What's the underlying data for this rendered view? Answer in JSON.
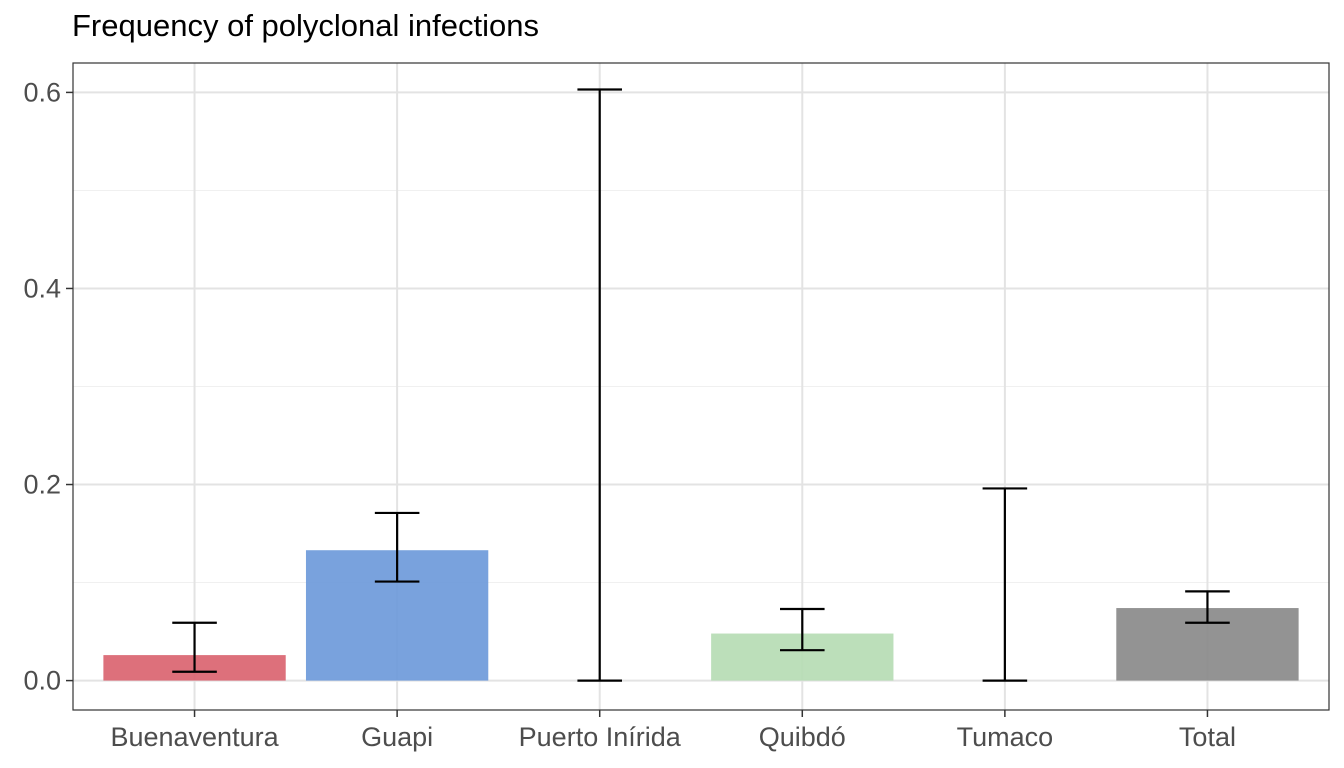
{
  "chart_data": {
    "type": "bar",
    "title": "Frequency of polyclonal infections",
    "xlabel": "",
    "ylabel": "",
    "categories": [
      "Buenaventura",
      "Guapi",
      "Puerto Inírida",
      "Quibdó",
      "Tumaco",
      "Total"
    ],
    "values": [
      0.026,
      0.133,
      0.0,
      0.048,
      0.0,
      0.074
    ],
    "error_low": [
      0.009,
      0.101,
      0.0,
      0.031,
      0.0,
      0.059
    ],
    "error_high": [
      0.059,
      0.171,
      0.603,
      0.073,
      0.196,
      0.091
    ],
    "colors": [
      "#d9606d",
      "#6a98d9",
      "#000000",
      "#b5dbb3",
      "#878787",
      "#878787"
    ],
    "ylim": [
      -0.03,
      0.63
    ],
    "yticks": [
      0.0,
      0.2,
      0.4,
      0.6
    ],
    "ytick_labels": [
      "0.0",
      "0.2",
      "0.4",
      "0.6"
    ],
    "grid": true,
    "legend": "none"
  }
}
